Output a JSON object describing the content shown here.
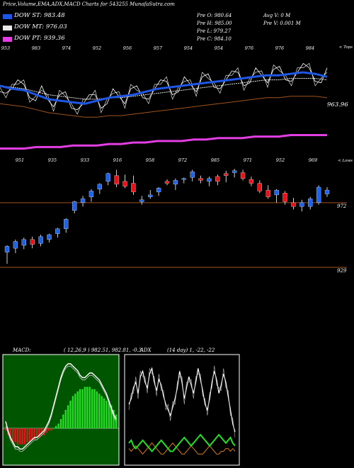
{
  "header": {
    "title": "Price,Volume,EMA,ADX,MACD Charts for 543255 MunafaSutra.com"
  },
  "legend": [
    {
      "label": "DOW ST: 983.48",
      "color": "#1e56e6"
    },
    {
      "label": "DOW MT: 976.03",
      "color": "#e8e8e8"
    },
    {
      "label": "DOW PT: 939.36",
      "color": "#e23ee3"
    }
  ],
  "ohlc": {
    "col1": [
      "Pre  O: 980.64",
      "Pre  H: 985.00",
      "Pre  L: 979.27",
      "Pre  C: 984.10"
    ],
    "col2": [
      "Avg V: 0  M",
      "Pre  V: 0.001 M"
    ]
  },
  "labels": {
    "tops": "< Tops",
    "lows": "< Lows",
    "price_last": "963.96",
    "level_mid": "972",
    "level_low": "929"
  },
  "colors": {
    "up": "#1e63e6",
    "down": "#e4141c",
    "ema_short": "#1e56e6",
    "ema_mid": "#e8e8e8",
    "ema_long": "#e23ee3",
    "ema_brown": "#a0521e",
    "macd_up": "#21e021",
    "macd_down": "#e4141c",
    "adx_plus": "#21e021",
    "adx_minus": "#d97a10",
    "panel_border": "#ffffff",
    "macd_bg": "#005500"
  },
  "chart_data": [
    {
      "type": "line",
      "title": "Price,Volume,EMA,ADX,MACD Charts for 543255 MunafaSutra.com",
      "top_labels": [
        "953",
        "983",
        "974",
        "952",
        "956",
        "957",
        "954",
        "954",
        "976",
        "976",
        "984"
      ],
      "low_labels": [
        "951",
        "935",
        "933",
        "916",
        "958",
        "972",
        "985",
        "971",
        "952",
        "969"
      ],
      "series": [
        {
          "name": "DOW ST",
          "values": [
            972,
            970,
            969,
            966,
            963,
            962,
            961,
            960,
            962,
            964,
            965,
            966,
            968,
            970,
            971,
            972,
            973,
            974,
            975,
            976,
            977,
            978,
            979,
            979,
            980,
            981,
            980,
            978
          ]
        },
        {
          "name": "DOW MT",
          "values": [
            972,
            971,
            970,
            968,
            966,
            965,
            964,
            963,
            963,
            964,
            964,
            965,
            966,
            967,
            968,
            969,
            970,
            971,
            972,
            973,
            974,
            975,
            976,
            976,
            977,
            977,
            977,
            976
          ]
        },
        {
          "name": "DOW PT",
          "values": [
            930,
            930,
            930,
            931,
            931,
            931,
            932,
            932,
            932,
            933,
            933,
            934,
            934,
            935,
            935,
            935,
            936,
            936,
            937,
            937,
            937,
            938,
            938,
            938,
            939,
            939,
            939,
            939
          ]
        }
      ],
      "last_price": 963.96
    },
    {
      "type": "bar",
      "title": "",
      "candles": [
        {
          "o": 921,
          "h": 928,
          "l": 909,
          "c": 927
        },
        {
          "o": 925,
          "h": 934,
          "l": 920,
          "c": 932
        },
        {
          "o": 928,
          "h": 936,
          "l": 924,
          "c": 934
        },
        {
          "o": 934,
          "h": 937,
          "l": 925,
          "c": 929
        },
        {
          "o": 930,
          "h": 939,
          "l": 927,
          "c": 937
        },
        {
          "o": 934,
          "h": 940,
          "l": 931,
          "c": 939
        },
        {
          "o": 940,
          "h": 946,
          "l": 936,
          "c": 945
        },
        {
          "o": 945,
          "h": 956,
          "l": 941,
          "c": 955
        },
        {
          "o": 964,
          "h": 974,
          "l": 961,
          "c": 973
        },
        {
          "o": 972,
          "h": 979,
          "l": 968,
          "c": 976
        },
        {
          "o": 978,
          "h": 986,
          "l": 973,
          "c": 984
        },
        {
          "o": 986,
          "h": 992,
          "l": 981,
          "c": 991
        },
        {
          "o": 994,
          "h": 1003,
          "l": 990,
          "c": 1002
        },
        {
          "o": 1000,
          "h": 1006,
          "l": 988,
          "c": 991
        },
        {
          "o": 994,
          "h": 1001,
          "l": 987,
          "c": 989
        },
        {
          "o": 992,
          "h": 1000,
          "l": 980,
          "c": 983
        },
        {
          "o": 973,
          "h": 979,
          "l": 970,
          "c": 975
        },
        {
          "o": 978,
          "h": 985,
          "l": 976,
          "c": 980
        },
        {
          "o": 983,
          "h": 988,
          "l": 979,
          "c": 987
        },
        {
          "o": 994,
          "h": 996,
          "l": 990,
          "c": 992
        },
        {
          "o": 991,
          "h": 997,
          "l": 985,
          "c": 995
        },
        {
          "o": 996,
          "h": 998,
          "l": 992,
          "c": 997
        },
        {
          "o": 998,
          "h": 1006,
          "l": 994,
          "c": 1004
        },
        {
          "o": 997,
          "h": 1000,
          "l": 992,
          "c": 995
        },
        {
          "o": 994,
          "h": 999,
          "l": 989,
          "c": 997
        },
        {
          "o": 999,
          "h": 1001,
          "l": 990,
          "c": 994
        },
        {
          "o": 1002,
          "h": 1005,
          "l": 993,
          "c": 1000
        },
        {
          "o": 1003,
          "h": 1007,
          "l": 998,
          "c": 1005
        },
        {
          "o": 1003,
          "h": 1006,
          "l": 995,
          "c": 997
        },
        {
          "o": 996,
          "h": 999,
          "l": 989,
          "c": 992
        },
        {
          "o": 992,
          "h": 995,
          "l": 982,
          "c": 984
        },
        {
          "o": 985,
          "h": 990,
          "l": 976,
          "c": 978
        },
        {
          "o": 980,
          "h": 986,
          "l": 972,
          "c": 985
        },
        {
          "o": 982,
          "h": 984,
          "l": 970,
          "c": 973
        },
        {
          "o": 972,
          "h": 977,
          "l": 965,
          "c": 968
        },
        {
          "o": 968,
          "h": 975,
          "l": 963,
          "c": 972
        },
        {
          "o": 968,
          "h": 978,
          "l": 965,
          "c": 976
        },
        {
          "o": 972,
          "h": 990,
          "l": 970,
          "c": 988
        },
        {
          "o": 981,
          "h": 988,
          "l": 978,
          "c": 985
        }
      ],
      "levels": [
        972,
        929
      ]
    },
    {
      "type": "bar",
      "title": "MACD",
      "params": "( 12,26,9 ) 982.51,  982.81,  -0.3",
      "histogram": [
        -1,
        -3,
        -5,
        -6,
        -6,
        -7,
        -7,
        -7,
        -7,
        -6,
        -6,
        -5,
        -5,
        -4,
        -4,
        -3,
        -3,
        -2,
        -1,
        -1,
        0,
        1,
        2,
        4,
        6,
        8,
        10,
        12,
        14,
        15,
        16,
        17,
        17,
        18,
        18,
        18,
        17,
        17,
        16,
        15,
        14,
        13,
        12,
        11,
        10,
        8,
        6
      ],
      "macd_line": [
        3,
        -1,
        -4,
        -6,
        -8,
        -8,
        -9,
        -9,
        -8,
        -7,
        -6,
        -5,
        -4,
        -4,
        -3,
        -2,
        -1,
        1,
        3,
        6,
        10,
        14,
        18,
        22,
        25,
        27,
        28,
        28,
        27,
        26,
        25,
        23,
        22,
        22,
        23,
        24,
        24,
        23,
        22,
        21,
        19,
        17,
        15,
        12,
        9,
        6,
        4
      ],
      "signal_line": [
        1,
        -2,
        -5,
        -7,
        -9,
        -9,
        -10,
        -10,
        -9,
        -8,
        -7,
        -6,
        -5,
        -5,
        -4,
        -3,
        -2,
        0,
        2,
        5,
        9,
        13,
        17,
        21,
        24,
        26,
        27,
        27,
        26,
        25,
        24,
        22,
        21,
        21,
        22,
        23,
        23,
        22,
        21,
        20,
        18,
        16,
        14,
        11,
        8,
        5,
        3
      ]
    },
    {
      "type": "line",
      "title": "ADX",
      "params": "(14  day) 1,  -22,  -22",
      "series": [
        {
          "name": "ADX",
          "values": [
            22,
            24,
            28,
            30,
            26,
            32,
            34,
            30,
            28,
            33,
            35,
            30,
            27,
            31,
            29,
            25,
            22,
            20,
            18,
            21,
            24,
            28,
            34,
            30,
            24,
            28,
            32,
            29,
            26,
            30,
            35,
            31,
            27,
            22,
            20,
            24,
            30,
            34,
            31,
            26,
            29,
            33,
            30,
            25,
            20,
            15,
            12
          ]
        },
        {
          "name": "+DI",
          "values": [
            8,
            9,
            7,
            6,
            7,
            8,
            9,
            8,
            7,
            6,
            5,
            6,
            7,
            8,
            9,
            8,
            7,
            6,
            5,
            5,
            6,
            7,
            8,
            9,
            10,
            9,
            8,
            7,
            8,
            9,
            10,
            11,
            10,
            9,
            8,
            7,
            8,
            9,
            10,
            11,
            10,
            9,
            8,
            9,
            10,
            8,
            7
          ]
        },
        {
          "name": "-DI",
          "values": [
            6,
            5,
            6,
            7,
            6,
            5,
            4,
            5,
            6,
            7,
            8,
            7,
            6,
            5,
            4,
            4,
            5,
            6,
            7,
            8,
            7,
            6,
            5,
            4,
            4,
            5,
            6,
            7,
            6,
            5,
            4,
            4,
            4,
            5,
            6,
            7,
            6,
            5,
            4,
            4,
            5,
            5,
            6,
            6,
            5,
            6,
            5
          ]
        }
      ]
    }
  ]
}
